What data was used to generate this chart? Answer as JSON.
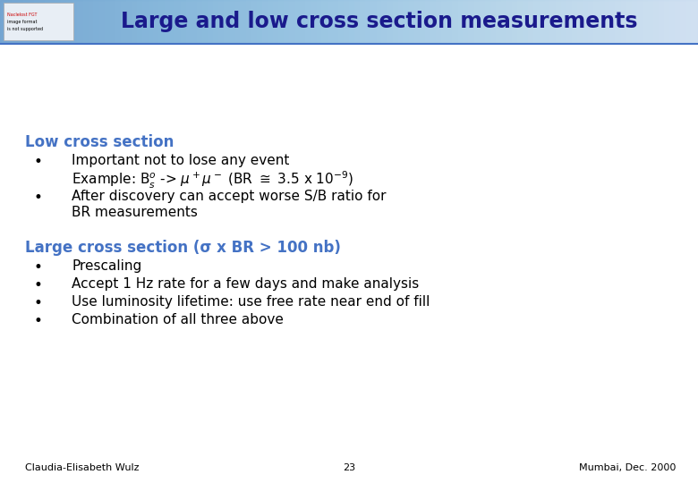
{
  "title": "Large and low cross section measurements",
  "title_color": "#1a1a8c",
  "title_fontsize": 17,
  "header_bg_color_left": "#a8c4e0",
  "header_bg_color_right": "#ddeeff",
  "header_line_color": "#4472c4",
  "background_color": "#ffffff",
  "low_section_heading": "Low cross section",
  "low_section_color": "#4472c4",
  "large_section_heading": "Large cross section (σ x BR > 100 nb)",
  "large_section_color": "#4472c4",
  "large_bullets": [
    "Prescaling",
    "Accept 1 Hz rate for a few days and make analysis",
    "Use luminosity lifetime: use free rate near end of fill",
    "Combination of all three above"
  ],
  "footer_left": "Claudia-Elisabeth Wulz",
  "footer_center": "23",
  "footer_right": "Mumbai, Dec. 2000",
  "bullet_fontsize": 11,
  "heading_fontsize": 12,
  "footer_fontsize": 8
}
